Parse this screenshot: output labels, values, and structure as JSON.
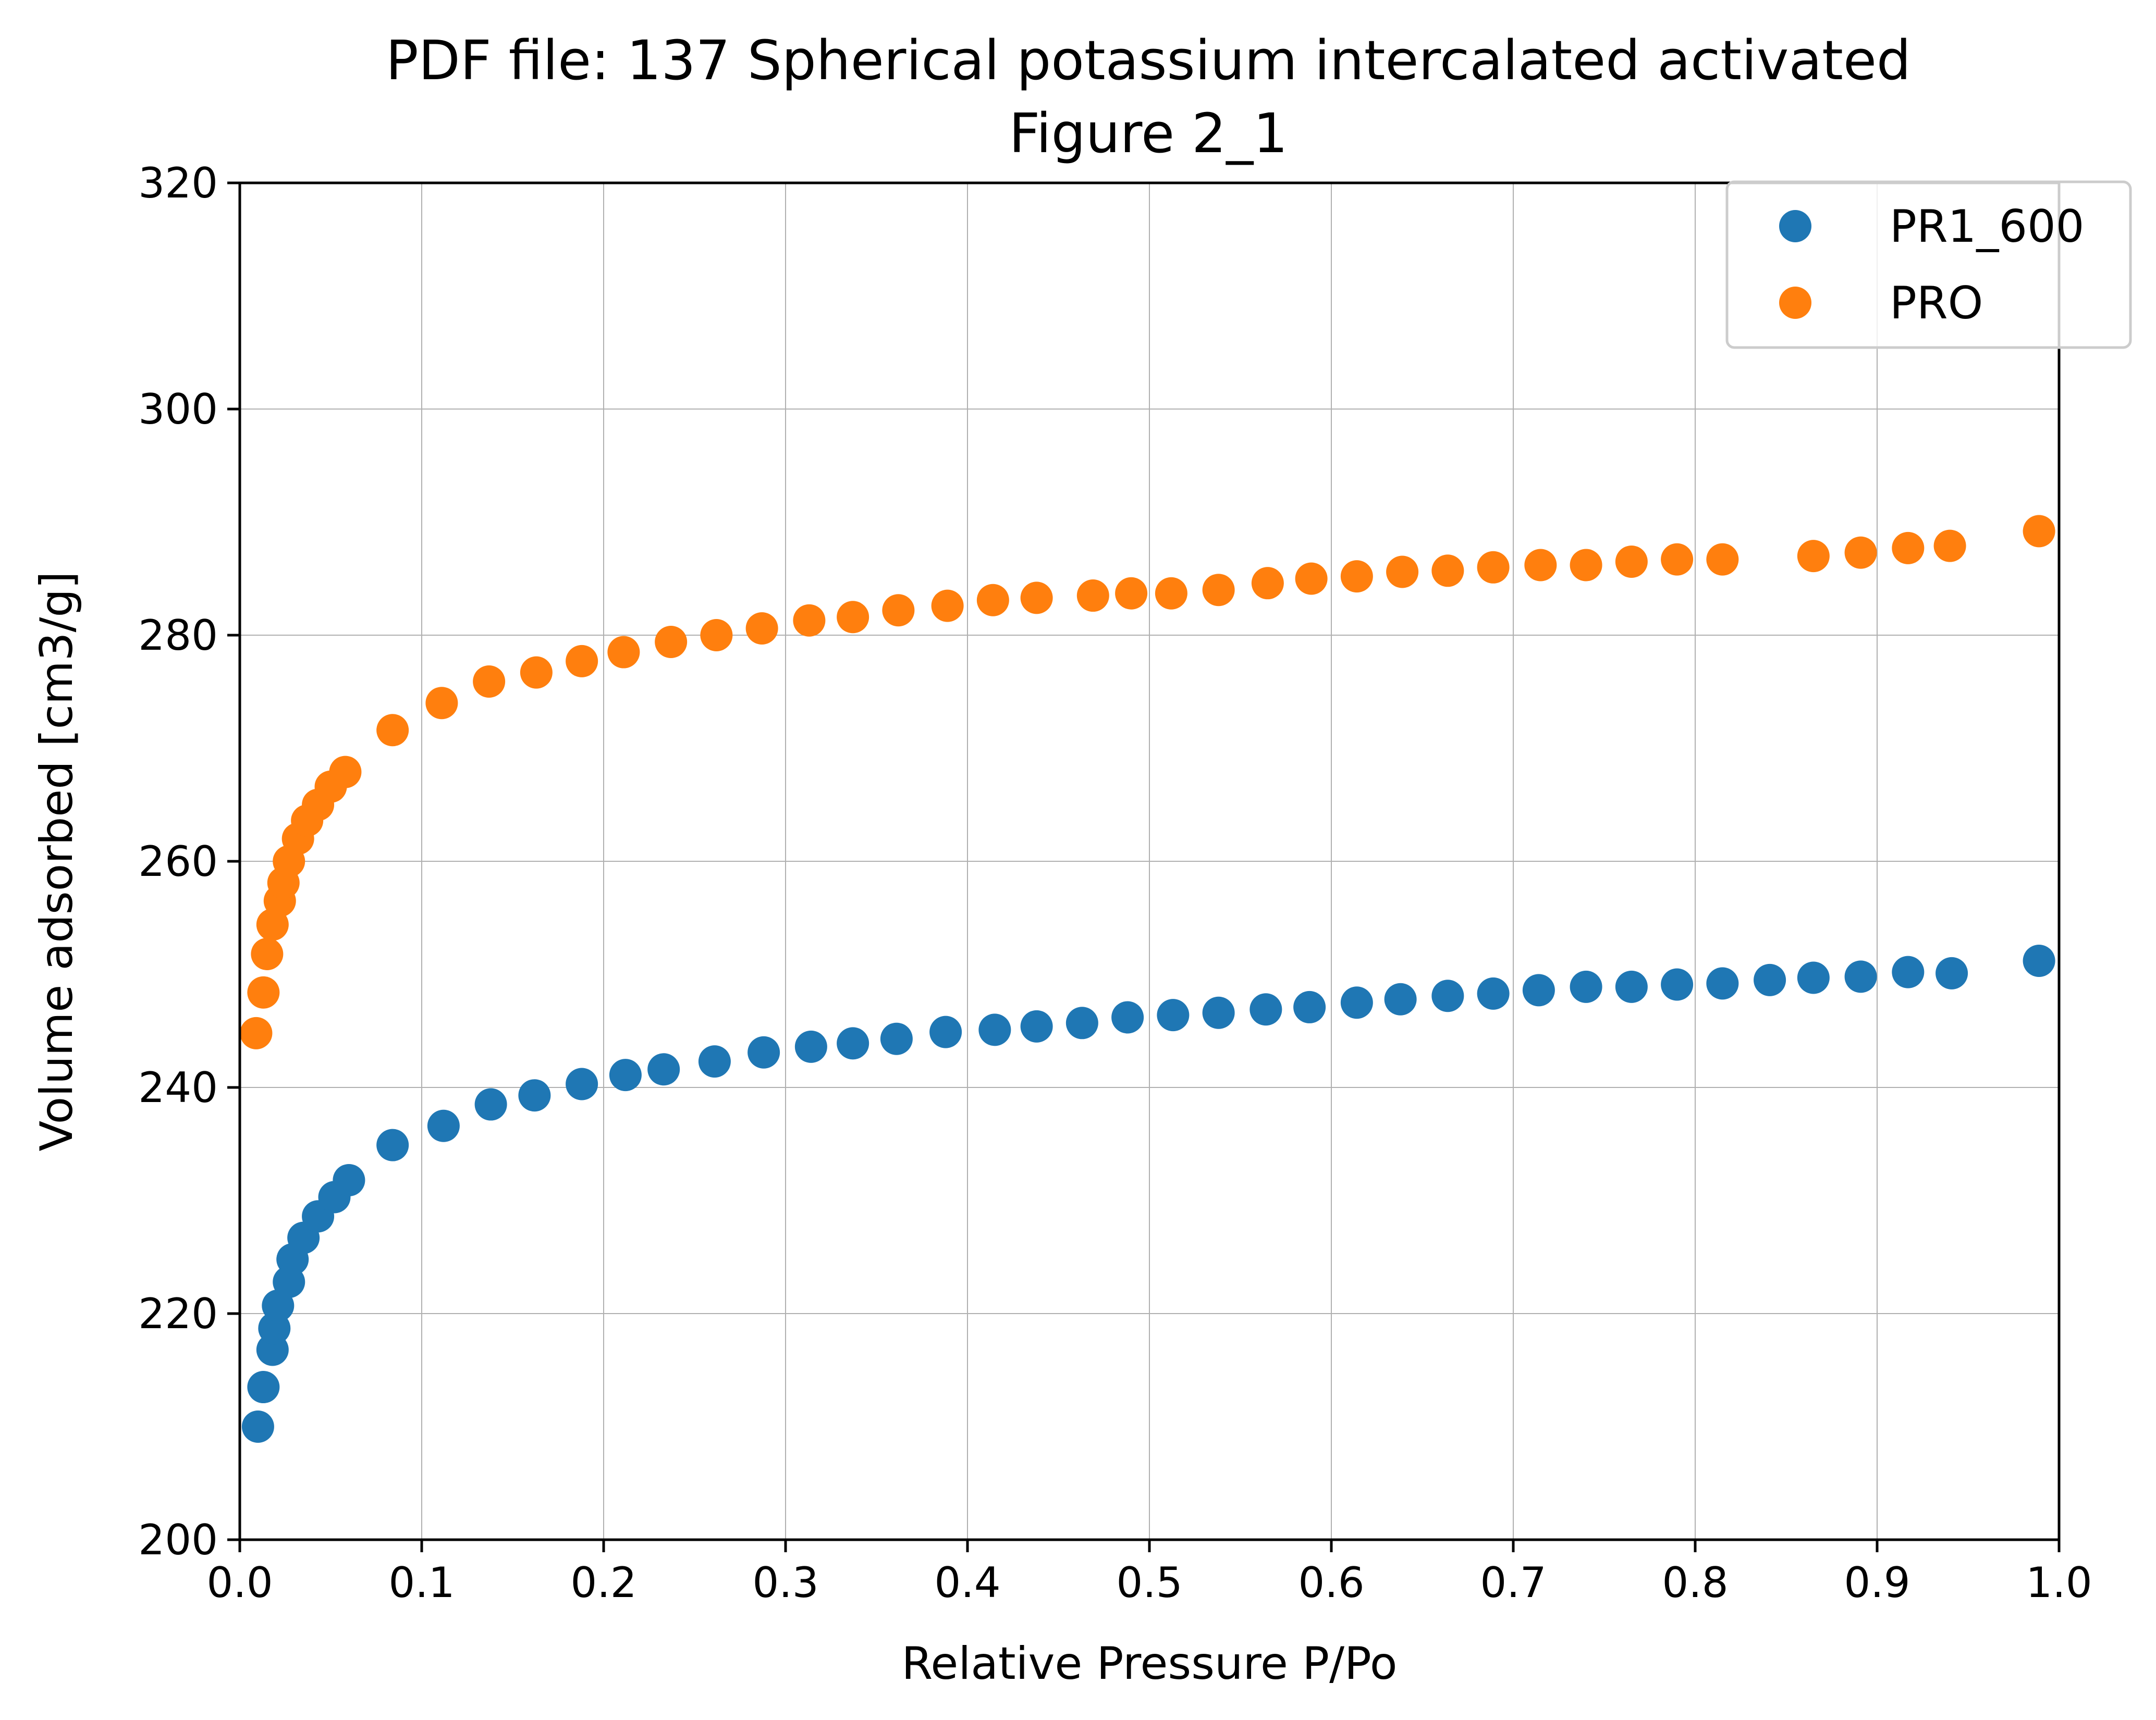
{
  "chart_data": {
    "type": "scatter",
    "title": "PDF file: 137 Spherical potassium intercalated activated",
    "subtitle": "Figure 2_1",
    "xlabel": "Relative Pressure P/Po",
    "ylabel": "Volume adsorbed [cm3/g]",
    "xlim": [
      0.0,
      1.0
    ],
    "ylim": [
      200,
      320
    ],
    "xticks": [
      "0.0",
      "0.1",
      "0.2",
      "0.3",
      "0.4",
      "0.5",
      "0.6",
      "0.7",
      "0.8",
      "0.9",
      "1.0"
    ],
    "yticks": [
      "200",
      "220",
      "240",
      "260",
      "280",
      "300",
      "320"
    ],
    "grid": true,
    "legend_position": "top-right",
    "series": [
      {
        "name": "PR1_600",
        "color": "#1f77b4",
        "points": [
          [
            0.01,
            210.0
          ],
          [
            0.013,
            213.5
          ],
          [
            0.018,
            216.8
          ],
          [
            0.019,
            218.7
          ],
          [
            0.021,
            220.7
          ],
          [
            0.027,
            222.8
          ],
          [
            0.029,
            224.8
          ],
          [
            0.035,
            226.7
          ],
          [
            0.043,
            228.6
          ],
          [
            0.052,
            230.3
          ],
          [
            0.06,
            231.8
          ],
          [
            0.084,
            234.9
          ],
          [
            0.112,
            236.6
          ],
          [
            0.138,
            238.5
          ],
          [
            0.162,
            239.3
          ],
          [
            0.188,
            240.3
          ],
          [
            0.212,
            241.1
          ],
          [
            0.233,
            241.6
          ],
          [
            0.261,
            242.3
          ],
          [
            0.288,
            243.1
          ],
          [
            0.314,
            243.6
          ],
          [
            0.337,
            243.9
          ],
          [
            0.361,
            244.3
          ],
          [
            0.388,
            244.9
          ],
          [
            0.415,
            245.1
          ],
          [
            0.438,
            245.4
          ],
          [
            0.463,
            245.7
          ],
          [
            0.488,
            246.2
          ],
          [
            0.513,
            246.4
          ],
          [
            0.538,
            246.6
          ],
          [
            0.564,
            246.9
          ],
          [
            0.588,
            247.1
          ],
          [
            0.614,
            247.5
          ],
          [
            0.638,
            247.8
          ],
          [
            0.664,
            248.1
          ],
          [
            0.689,
            248.3
          ],
          [
            0.714,
            248.6
          ],
          [
            0.74,
            248.9
          ],
          [
            0.765,
            248.9
          ],
          [
            0.79,
            249.1
          ],
          [
            0.815,
            249.2
          ],
          [
            0.841,
            249.5
          ],
          [
            0.865,
            249.7
          ],
          [
            0.891,
            249.8
          ],
          [
            0.917,
            250.2
          ],
          [
            0.941,
            250.1
          ],
          [
            0.989,
            251.2
          ]
        ]
      },
      {
        "name": "PRO",
        "color": "#ff7f0e",
        "points": [
          [
            0.009,
            244.8
          ],
          [
            0.013,
            248.4
          ],
          [
            0.015,
            251.8
          ],
          [
            0.018,
            254.4
          ],
          [
            0.022,
            256.5
          ],
          [
            0.024,
            258.1
          ],
          [
            0.027,
            260.0
          ],
          [
            0.032,
            262.0
          ],
          [
            0.037,
            263.6
          ],
          [
            0.043,
            265.0
          ],
          [
            0.05,
            266.6
          ],
          [
            0.058,
            267.9
          ],
          [
            0.084,
            271.6
          ],
          [
            0.111,
            274.0
          ],
          [
            0.137,
            275.9
          ],
          [
            0.163,
            276.7
          ],
          [
            0.188,
            277.7
          ],
          [
            0.211,
            278.5
          ],
          [
            0.237,
            279.4
          ],
          [
            0.262,
            280.0
          ],
          [
            0.287,
            280.6
          ],
          [
            0.313,
            281.3
          ],
          [
            0.337,
            281.6
          ],
          [
            0.362,
            282.2
          ],
          [
            0.389,
            282.6
          ],
          [
            0.414,
            283.1
          ],
          [
            0.438,
            283.3
          ],
          [
            0.469,
            283.5
          ],
          [
            0.49,
            283.7
          ],
          [
            0.512,
            283.7
          ],
          [
            0.538,
            284.0
          ],
          [
            0.565,
            284.6
          ],
          [
            0.589,
            285.0
          ],
          [
            0.614,
            285.2
          ],
          [
            0.639,
            285.6
          ],
          [
            0.664,
            285.7
          ],
          [
            0.689,
            286.0
          ],
          [
            0.715,
            286.2
          ],
          [
            0.74,
            286.2
          ],
          [
            0.765,
            286.5
          ],
          [
            0.79,
            286.7
          ],
          [
            0.815,
            286.7
          ],
          [
            0.865,
            287.0
          ],
          [
            0.891,
            287.3
          ],
          [
            0.917,
            287.7
          ],
          [
            0.94,
            287.9
          ],
          [
            0.989,
            289.2
          ]
        ]
      }
    ]
  }
}
